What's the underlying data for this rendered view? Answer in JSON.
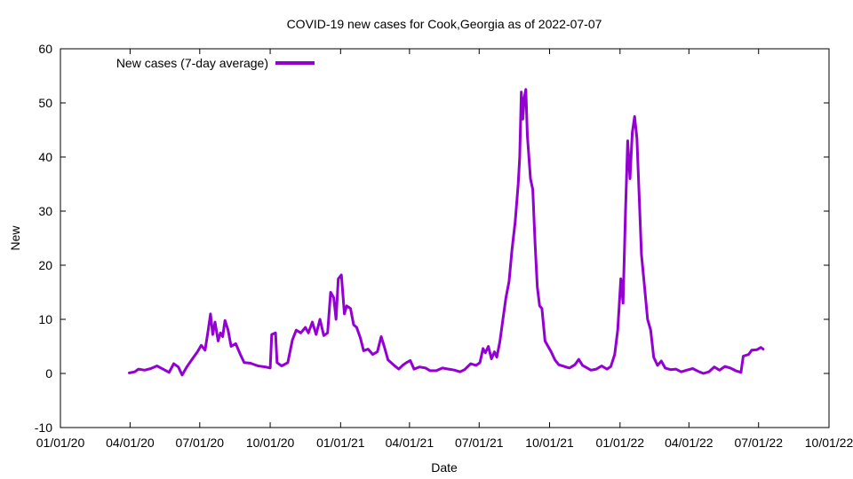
{
  "chart_data": {
    "type": "line",
    "title": "COVID-19 new cases for Cook,Georgia as of 2022-07-07",
    "xlabel": "Date",
    "ylabel": "New",
    "ylim": [
      -10,
      60
    ],
    "xlim": [
      "2020-01-01",
      "2022-10-01"
    ],
    "grid": false,
    "legend_position": "top-left",
    "x_ticks": [
      {
        "date": "2020-01-01",
        "label": "01/01/20"
      },
      {
        "date": "2020-04-01",
        "label": "04/01/20"
      },
      {
        "date": "2020-07-01",
        "label": "07/01/20"
      },
      {
        "date": "2020-10-01",
        "label": "10/01/20"
      },
      {
        "date": "2021-01-01",
        "label": "01/01/21"
      },
      {
        "date": "2021-04-01",
        "label": "04/01/21"
      },
      {
        "date": "2021-07-01",
        "label": "07/01/21"
      },
      {
        "date": "2021-10-01",
        "label": "10/01/21"
      },
      {
        "date": "2022-01-01",
        "label": "01/01/22"
      },
      {
        "date": "2022-04-01",
        "label": "04/01/22"
      },
      {
        "date": "2022-07-01",
        "label": "07/01/22"
      },
      {
        "date": "2022-10-01",
        "label": "10/01/22"
      }
    ],
    "y_ticks": [
      -10,
      0,
      10,
      20,
      30,
      40,
      50,
      60
    ],
    "series": [
      {
        "name": "New cases (7-day average)",
        "color": "#9400d3",
        "points": [
          [
            "2020-03-31",
            0.1
          ],
          [
            "2020-04-07",
            0.3
          ],
          [
            "2020-04-12",
            0.8
          ],
          [
            "2020-04-20",
            0.6
          ],
          [
            "2020-04-28",
            0.9
          ],
          [
            "2020-05-06",
            1.4
          ],
          [
            "2020-05-14",
            0.8
          ],
          [
            "2020-05-22",
            0.2
          ],
          [
            "2020-05-28",
            1.8
          ],
          [
            "2020-06-03",
            1.2
          ],
          [
            "2020-06-08",
            -0.3
          ],
          [
            "2020-06-14",
            1.2
          ],
          [
            "2020-06-22",
            2.8
          ],
          [
            "2020-06-28",
            4.0
          ],
          [
            "2020-07-03",
            5.2
          ],
          [
            "2020-07-08",
            4.3
          ],
          [
            "2020-07-12",
            8.0
          ],
          [
            "2020-07-15",
            11.0
          ],
          [
            "2020-07-18",
            7.2
          ],
          [
            "2020-07-21",
            9.5
          ],
          [
            "2020-07-25",
            6.0
          ],
          [
            "2020-07-28",
            7.5
          ],
          [
            "2020-07-31",
            6.8
          ],
          [
            "2020-08-03",
            9.8
          ],
          [
            "2020-08-07",
            8.0
          ],
          [
            "2020-08-11",
            5.0
          ],
          [
            "2020-08-17",
            5.5
          ],
          [
            "2020-08-23",
            3.5
          ],
          [
            "2020-08-28",
            2.0
          ],
          [
            "2020-09-05",
            1.9
          ],
          [
            "2020-09-15",
            1.4
          ],
          [
            "2020-09-25",
            1.2
          ],
          [
            "2020-10-01",
            1.0
          ],
          [
            "2020-10-03",
            7.2
          ],
          [
            "2020-10-08",
            7.5
          ],
          [
            "2020-10-10",
            2.0
          ],
          [
            "2020-10-16",
            1.4
          ],
          [
            "2020-10-24",
            2.0
          ],
          [
            "2020-10-30",
            6.2
          ],
          [
            "2020-11-04",
            8.0
          ],
          [
            "2020-11-10",
            7.5
          ],
          [
            "2020-11-16",
            8.5
          ],
          [
            "2020-11-20",
            7.5
          ],
          [
            "2020-11-25",
            9.5
          ],
          [
            "2020-11-30",
            7.2
          ],
          [
            "2020-12-05",
            10.0
          ],
          [
            "2020-12-10",
            7.0
          ],
          [
            "2020-12-15",
            7.5
          ],
          [
            "2020-12-19",
            15.0
          ],
          [
            "2020-12-23",
            14.0
          ],
          [
            "2020-12-26",
            10.0
          ],
          [
            "2020-12-29",
            17.5
          ],
          [
            "2021-01-02",
            18.2
          ],
          [
            "2021-01-06",
            11.0
          ],
          [
            "2021-01-09",
            12.5
          ],
          [
            "2021-01-14",
            12.0
          ],
          [
            "2021-01-18",
            9.0
          ],
          [
            "2021-01-22",
            8.5
          ],
          [
            "2021-01-27",
            6.5
          ],
          [
            "2021-01-31",
            4.2
          ],
          [
            "2021-02-06",
            4.5
          ],
          [
            "2021-02-12",
            3.5
          ],
          [
            "2021-02-18",
            4.0
          ],
          [
            "2021-02-23",
            6.8
          ],
          [
            "2021-02-27",
            5.0
          ],
          [
            "2021-03-04",
            2.5
          ],
          [
            "2021-03-12",
            1.5
          ],
          [
            "2021-03-18",
            0.8
          ],
          [
            "2021-03-23",
            1.5
          ],
          [
            "2021-03-28",
            2.0
          ],
          [
            "2021-04-02",
            2.4
          ],
          [
            "2021-04-07",
            0.8
          ],
          [
            "2021-04-14",
            1.2
          ],
          [
            "2021-04-22",
            1.0
          ],
          [
            "2021-04-28",
            0.5
          ],
          [
            "2021-05-06",
            0.5
          ],
          [
            "2021-05-14",
            1.0
          ],
          [
            "2021-05-22",
            0.8
          ],
          [
            "2021-05-30",
            0.6
          ],
          [
            "2021-06-06",
            0.3
          ],
          [
            "2021-06-12",
            0.7
          ],
          [
            "2021-06-20",
            1.8
          ],
          [
            "2021-06-27",
            1.5
          ],
          [
            "2021-07-02",
            2.0
          ],
          [
            "2021-07-06",
            4.6
          ],
          [
            "2021-07-09",
            3.8
          ],
          [
            "2021-07-13",
            5.0
          ],
          [
            "2021-07-17",
            2.7
          ],
          [
            "2021-07-21",
            4.0
          ],
          [
            "2021-07-24",
            3.0
          ],
          [
            "2021-07-28",
            5.8
          ],
          [
            "2021-08-01",
            10.0
          ],
          [
            "2021-08-05",
            14.0
          ],
          [
            "2021-08-09",
            17.0
          ],
          [
            "2021-08-13",
            23.0
          ],
          [
            "2021-08-17",
            28.0
          ],
          [
            "2021-08-21",
            35.0
          ],
          [
            "2021-08-23",
            40.0
          ],
          [
            "2021-08-25",
            52.0
          ],
          [
            "2021-08-27",
            47.0
          ],
          [
            "2021-08-29",
            51.0
          ],
          [
            "2021-08-31",
            52.5
          ],
          [
            "2021-09-02",
            44.0
          ],
          [
            "2021-09-06",
            36.0
          ],
          [
            "2021-09-09",
            34.0
          ],
          [
            "2021-09-12",
            24.0
          ],
          [
            "2021-09-15",
            16.0
          ],
          [
            "2021-09-18",
            12.5
          ],
          [
            "2021-09-21",
            12.0
          ],
          [
            "2021-09-25",
            6.0
          ],
          [
            "2021-09-29",
            5.0
          ],
          [
            "2021-10-03",
            4.0
          ],
          [
            "2021-10-08",
            2.5
          ],
          [
            "2021-10-13",
            1.6
          ],
          [
            "2021-10-20",
            1.3
          ],
          [
            "2021-10-27",
            1.0
          ],
          [
            "2021-11-03",
            1.6
          ],
          [
            "2021-11-08",
            2.6
          ],
          [
            "2021-11-13",
            1.5
          ],
          [
            "2021-11-18",
            1.1
          ],
          [
            "2021-11-24",
            0.6
          ],
          [
            "2021-12-01",
            0.8
          ],
          [
            "2021-12-08",
            1.4
          ],
          [
            "2021-12-15",
            0.8
          ],
          [
            "2021-12-20",
            1.3
          ],
          [
            "2021-12-25",
            3.5
          ],
          [
            "2021-12-29",
            8.0
          ],
          [
            "2022-01-02",
            17.5
          ],
          [
            "2022-01-05",
            13.0
          ],
          [
            "2022-01-08",
            29.0
          ],
          [
            "2022-01-11",
            43.0
          ],
          [
            "2022-01-14",
            36.0
          ],
          [
            "2022-01-17",
            44.5
          ],
          [
            "2022-01-20",
            47.5
          ],
          [
            "2022-01-23",
            43.5
          ],
          [
            "2022-01-26",
            33.0
          ],
          [
            "2022-01-29",
            22.0
          ],
          [
            "2022-02-02",
            16.0
          ],
          [
            "2022-02-06",
            10.0
          ],
          [
            "2022-02-10",
            8.0
          ],
          [
            "2022-02-14",
            3.0
          ],
          [
            "2022-02-19",
            1.5
          ],
          [
            "2022-02-24",
            2.3
          ],
          [
            "2022-03-01",
            1.0
          ],
          [
            "2022-03-08",
            0.7
          ],
          [
            "2022-03-15",
            0.8
          ],
          [
            "2022-03-22",
            0.3
          ],
          [
            "2022-03-29",
            0.6
          ],
          [
            "2022-04-06",
            0.9
          ],
          [
            "2022-04-13",
            0.4
          ],
          [
            "2022-04-20",
            0.0
          ],
          [
            "2022-04-27",
            0.3
          ],
          [
            "2022-05-04",
            1.2
          ],
          [
            "2022-05-11",
            0.6
          ],
          [
            "2022-05-18",
            1.3
          ],
          [
            "2022-05-25",
            1.0
          ],
          [
            "2022-06-01",
            0.5
          ],
          [
            "2022-06-08",
            0.2
          ],
          [
            "2022-06-11",
            3.2
          ],
          [
            "2022-06-18",
            3.5
          ],
          [
            "2022-06-22",
            4.3
          ],
          [
            "2022-06-29",
            4.4
          ],
          [
            "2022-07-04",
            4.8
          ],
          [
            "2022-07-07",
            4.5
          ]
        ]
      }
    ]
  }
}
